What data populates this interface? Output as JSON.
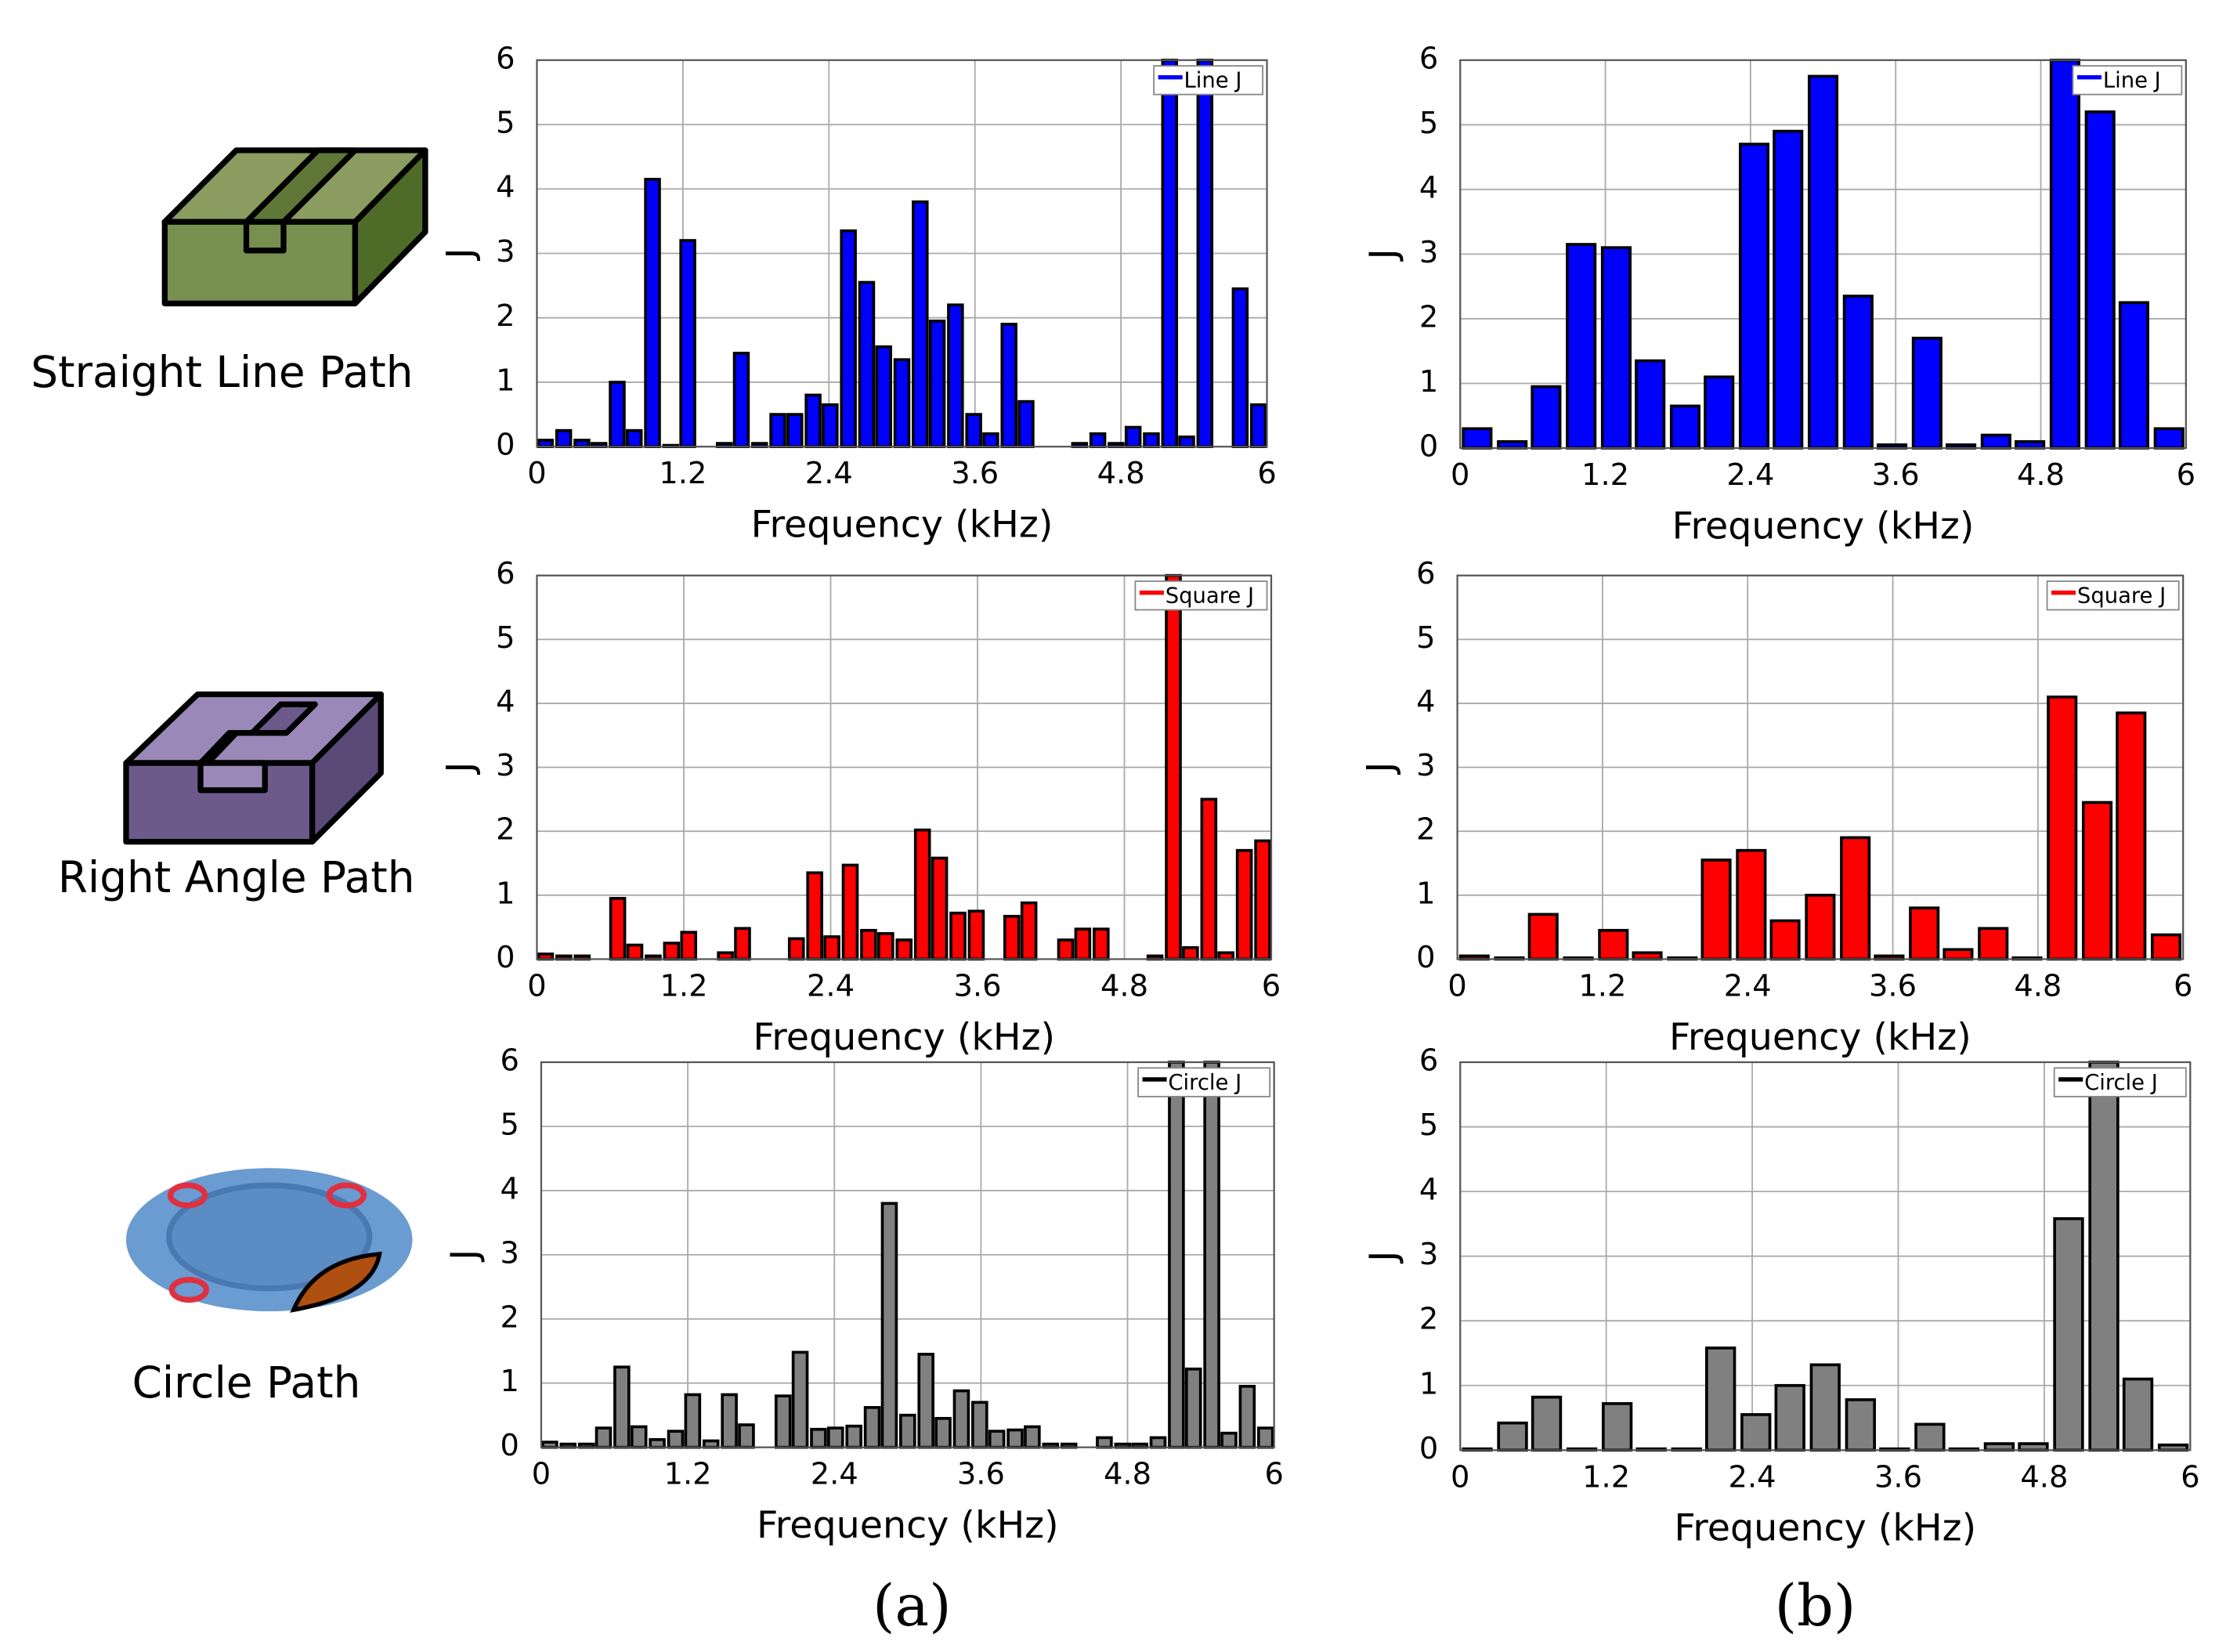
{
  "row_labels": [
    "Straight Line Path",
    "Right Angle Path",
    "Circle Path"
  ],
  "panel_labels": [
    "(a)",
    "(b)"
  ],
  "chart_data": [
    {
      "type": "bar",
      "xlabel": "Frequency (kHz)",
      "ylabel": "J",
      "grid": true,
      "legend": "upper right",
      "xlim": [
        0,
        6
      ],
      "ylim": [
        0,
        6
      ],
      "xticks": [
        0,
        1.2,
        2.4,
        3.6,
        4.8,
        6
      ],
      "yticks": [
        0,
        1,
        2,
        3,
        4,
        5,
        6
      ],
      "x": [
        0.07,
        0.22,
        0.37,
        0.51,
        0.66,
        0.8,
        0.95,
        1.1,
        1.24,
        1.39,
        1.54,
        1.68,
        1.83,
        1.98,
        2.12,
        2.27,
        2.41,
        2.56,
        2.71,
        2.85,
        3.0,
        3.15,
        3.29,
        3.44,
        3.59,
        3.73,
        3.88,
        4.02,
        4.17,
        4.32,
        4.46,
        4.61,
        4.76,
        4.9,
        5.05,
        5.2,
        5.34,
        5.49,
        5.63,
        5.78,
        5.93
      ],
      "series": [
        {
          "name": "Line J",
          "color": "#0000ff",
          "values": [
            0.1,
            0.25,
            0.1,
            0.05,
            1.0,
            0.25,
            4.15,
            0.02,
            3.2,
            0,
            0.05,
            1.45,
            0.05,
            0.5,
            0.5,
            0.8,
            0.65,
            3.35,
            2.55,
            1.55,
            1.35,
            3.8,
            1.95,
            2.2,
            0.5,
            0.2,
            1.9,
            0.7,
            0,
            0,
            0.05,
            0.2,
            0.05,
            0.3,
            0.2,
            6,
            0.15,
            6,
            0,
            2.45,
            0.65
          ]
        }
      ]
    },
    {
      "type": "bar",
      "xlabel": "Frequency (kHz)",
      "ylabel": "J",
      "grid": true,
      "legend": "upper right",
      "xlim": [
        0,
        6
      ],
      "ylim": [
        0,
        6
      ],
      "xticks": [
        0,
        1.2,
        2.4,
        3.6,
        4.8,
        6
      ],
      "yticks": [
        0,
        1,
        2,
        3,
        4,
        5,
        6
      ],
      "x": [
        0.14,
        0.43,
        0.71,
        1.0,
        1.29,
        1.57,
        1.86,
        2.14,
        2.43,
        2.71,
        3.0,
        3.29,
        3.57,
        3.86,
        4.14,
        4.43,
        4.71,
        5.0,
        5.29,
        5.57,
        5.86
      ],
      "series": [
        {
          "name": "Line J",
          "color": "#0000ff",
          "values": [
            0.3,
            0.1,
            0.95,
            3.15,
            3.1,
            1.35,
            0.65,
            1.1,
            4.7,
            4.9,
            5.75,
            2.35,
            0.05,
            1.7,
            0.05,
            0.2,
            0.1,
            6,
            5.2,
            2.25,
            0.3
          ]
        }
      ]
    },
    {
      "type": "bar",
      "xlabel": "Frequency (kHz)",
      "ylabel": "J",
      "grid": true,
      "legend": "upper right",
      "xlim": [
        0,
        6
      ],
      "ylim": [
        0,
        6
      ],
      "xticks": [
        0,
        1.2,
        2.4,
        3.6,
        4.8,
        6
      ],
      "yticks": [
        0,
        1,
        2,
        3,
        4,
        5,
        6
      ],
      "x": [
        0.07,
        0.22,
        0.37,
        0.51,
        0.66,
        0.8,
        0.95,
        1.1,
        1.24,
        1.39,
        1.54,
        1.68,
        1.83,
        1.98,
        2.12,
        2.27,
        2.41,
        2.56,
        2.71,
        2.85,
        3.0,
        3.15,
        3.29,
        3.44,
        3.59,
        3.73,
        3.88,
        4.02,
        4.17,
        4.32,
        4.46,
        4.61,
        4.76,
        4.9,
        5.05,
        5.2,
        5.34,
        5.49,
        5.63,
        5.78,
        5.93
      ],
      "series": [
        {
          "name": "Square J",
          "color": "#ff0000",
          "values": [
            0.08,
            0.05,
            0.05,
            0,
            0.95,
            0.22,
            0.05,
            0.25,
            0.42,
            0,
            0.1,
            0.48,
            0,
            0,
            0.32,
            1.35,
            0.35,
            1.47,
            0.45,
            0.4,
            0.3,
            2.02,
            1.58,
            0.72,
            0.75,
            0,
            0.67,
            0.88,
            0,
            0.3,
            0.47,
            0.47,
            0,
            0,
            0.05,
            6,
            0.18,
            2.5,
            0.1,
            1.7,
            1.85
          ]
        }
      ]
    },
    {
      "type": "bar",
      "xlabel": "Frequency (kHz)",
      "ylabel": "J",
      "grid": true,
      "legend": "upper right",
      "xlim": [
        0,
        6
      ],
      "ylim": [
        0,
        6
      ],
      "xticks": [
        0,
        1.2,
        2.4,
        3.6,
        4.8,
        6
      ],
      "yticks": [
        0,
        1,
        2,
        3,
        4,
        5,
        6
      ],
      "x": [
        0.14,
        0.43,
        0.71,
        1.0,
        1.29,
        1.57,
        1.86,
        2.14,
        2.43,
        2.71,
        3.0,
        3.29,
        3.57,
        3.86,
        4.14,
        4.43,
        4.71,
        5.0,
        5.29,
        5.57,
        5.86
      ],
      "series": [
        {
          "name": "Square J",
          "color": "#ff0000",
          "values": [
            0.05,
            0.02,
            0.7,
            0.02,
            0.45,
            0.1,
            0.02,
            1.55,
            1.7,
            0.6,
            1.0,
            1.9,
            0.05,
            0.8,
            0.15,
            0.48,
            0.02,
            4.1,
            2.45,
            3.85,
            0.38
          ]
        }
      ]
    },
    {
      "type": "bar",
      "xlabel": "Frequency (kHz)",
      "ylabel": "J",
      "grid": true,
      "legend": "upper right",
      "xlim": [
        0,
        6
      ],
      "ylim": [
        0,
        6
      ],
      "xticks": [
        0,
        1.2,
        2.4,
        3.6,
        4.8,
        6
      ],
      "yticks": [
        0,
        1,
        2,
        3,
        4,
        5,
        6
      ],
      "x": [
        0.07,
        0.22,
        0.37,
        0.51,
        0.66,
        0.8,
        0.95,
        1.1,
        1.24,
        1.39,
        1.54,
        1.68,
        1.83,
        1.98,
        2.12,
        2.27,
        2.41,
        2.56,
        2.71,
        2.85,
        3.0,
        3.15,
        3.29,
        3.44,
        3.59,
        3.73,
        3.88,
        4.02,
        4.17,
        4.32,
        4.46,
        4.61,
        4.76,
        4.9,
        5.05,
        5.2,
        5.34,
        5.49,
        5.63,
        5.78,
        5.93
      ],
      "series": [
        {
          "name": "Circle J",
          "color": "#808080",
          "values": [
            0.08,
            0.05,
            0.05,
            0.3,
            1.25,
            0.32,
            0.12,
            0.25,
            0.82,
            0.1,
            0.82,
            0.35,
            0,
            0.8,
            1.48,
            0.28,
            0.3,
            0.33,
            0.62,
            3.8,
            0.5,
            1.45,
            0.45,
            0.88,
            0.7,
            0.25,
            0.27,
            0.32,
            0.05,
            0.05,
            0,
            0.15,
            0.05,
            0.05,
            0.15,
            6,
            1.22,
            6,
            0.22,
            0.95,
            0.3
          ]
        }
      ]
    },
    {
      "type": "bar",
      "xlabel": "Frequency (kHz)",
      "ylabel": "J",
      "grid": true,
      "legend": "upper right",
      "xlim": [
        0,
        6
      ],
      "ylim": [
        0,
        6
      ],
      "xticks": [
        0,
        1.2,
        2.4,
        3.6,
        4.8,
        6
      ],
      "yticks": [
        0,
        1,
        2,
        3,
        4,
        5,
        6
      ],
      "x": [
        0.14,
        0.43,
        0.71,
        1.0,
        1.29,
        1.57,
        1.86,
        2.14,
        2.43,
        2.71,
        3.0,
        3.29,
        3.57,
        3.86,
        4.14,
        4.43,
        4.71,
        5.0,
        5.29,
        5.57,
        5.86
      ],
      "series": [
        {
          "name": "Circle J",
          "color": "#808080",
          "values": [
            0.02,
            0.42,
            0.82,
            0.02,
            0.72,
            0.02,
            0.02,
            1.58,
            0.55,
            1.0,
            1.32,
            0.78,
            0.02,
            0.4,
            0.02,
            0.1,
            0.1,
            3.58,
            6,
            1.1,
            0.08
          ]
        }
      ]
    }
  ]
}
